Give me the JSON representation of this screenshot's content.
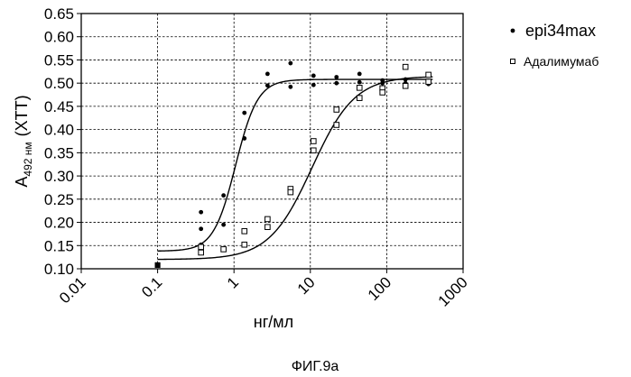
{
  "chart_data": {
    "type": "scatter",
    "title": "",
    "xlabel": "нг/мл",
    "ylabel": {
      "main": "A",
      "subscript": "492 нм",
      "suffix": "(XTT)"
    },
    "xscale": "log",
    "xlim": [
      0.01,
      1000
    ],
    "ylim": [
      0.1,
      0.65
    ],
    "x_tick_labels": [
      "0.01",
      "0.1",
      "1",
      "10",
      "100",
      "1000"
    ],
    "y_tick_labels": [
      "0.10",
      "0.15",
      "0.20",
      "0.25",
      "0.30",
      "0.35",
      "0.40",
      "0.45",
      "0.50",
      "0.55",
      "0.60",
      "0.65"
    ],
    "grid": "dashed",
    "legend_position": "right",
    "series": [
      {
        "name": "epi34max",
        "marker": "dot",
        "points": [
          [
            0.1,
            0.108
          ],
          [
            0.37,
            0.222
          ],
          [
            0.37,
            0.186
          ],
          [
            0.37,
            0.152
          ],
          [
            0.73,
            0.258
          ],
          [
            0.73,
            0.195
          ],
          [
            1.37,
            0.436
          ],
          [
            1.37,
            0.381
          ],
          [
            2.75,
            0.52
          ],
          [
            2.75,
            0.495
          ],
          [
            5.5,
            0.543
          ],
          [
            5.5,
            0.492
          ],
          [
            11,
            0.516
          ],
          [
            11,
            0.496
          ],
          [
            22,
            0.513
          ],
          [
            22,
            0.5
          ],
          [
            44,
            0.52
          ],
          [
            44,
            0.502
          ],
          [
            88,
            0.506
          ],
          [
            88,
            0.5
          ],
          [
            176,
            0.508
          ],
          [
            176,
            0.5
          ],
          [
            352,
            0.505
          ],
          [
            352,
            0.498
          ]
        ],
        "fit": {
          "bottom": 0.138,
          "top": 0.508,
          "ec50": 1.05,
          "hill": 3.0
        }
      },
      {
        "name": "Адалимумаб",
        "marker": "open-square",
        "points": [
          [
            0.1,
            0.108
          ],
          [
            0.37,
            0.147
          ],
          [
            0.37,
            0.135
          ],
          [
            0.73,
            0.142
          ],
          [
            1.37,
            0.181
          ],
          [
            1.37,
            0.152
          ],
          [
            2.75,
            0.207
          ],
          [
            2.75,
            0.19
          ],
          [
            5.5,
            0.272
          ],
          [
            5.5,
            0.265
          ],
          [
            11,
            0.375
          ],
          [
            11,
            0.355
          ],
          [
            22,
            0.443
          ],
          [
            22,
            0.41
          ],
          [
            44,
            0.49
          ],
          [
            44,
            0.468
          ],
          [
            88,
            0.489
          ],
          [
            88,
            0.48
          ],
          [
            176,
            0.535
          ],
          [
            176,
            0.494
          ],
          [
            352,
            0.518
          ],
          [
            352,
            0.503
          ]
        ],
        "fit": {
          "bottom": 0.12,
          "top": 0.515,
          "ec50": 10.5,
          "hill": 1.55
        }
      }
    ]
  },
  "caption": "ФИГ.9a"
}
